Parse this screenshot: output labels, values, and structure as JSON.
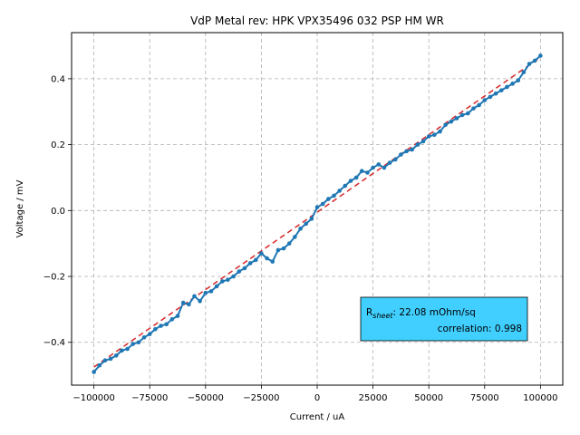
{
  "chart_data": {
    "type": "scatter",
    "title": "VdP Metal rev: HPK VPX35496 032 PSP HM WR",
    "xlabel": "Current / uA",
    "ylabel": "Voltage / mV",
    "xlim": [
      -110000,
      110000
    ],
    "ylim": [
      -0.53,
      0.54
    ],
    "grid": true,
    "xticks": [
      -100000,
      -75000,
      -50000,
      -25000,
      0,
      25000,
      50000,
      75000,
      100000
    ],
    "xtick_labels": [
      "−100000",
      "−75000",
      "−50000",
      "−25000",
      "0",
      "25000",
      "50000",
      "75000",
      "100000"
    ],
    "yticks": [
      -0.4,
      -0.2,
      0.0,
      0.2,
      0.4
    ],
    "ytick_labels": [
      "−0.4",
      "−0.2",
      "0.0",
      "0.2",
      "0.4"
    ],
    "colors": {
      "data": "#1f77b4",
      "fit": "#d62728",
      "annotation_bg": "#40cfff"
    },
    "series": [
      {
        "x": [
          -100000,
          -97500,
          -95000,
          -92500,
          -90000,
          -87500,
          -85000,
          -82500,
          -80000,
          -77500,
          -75000,
          -72500,
          -70000,
          -67500,
          -65000,
          -62500,
          -60000,
          -57500,
          -55000,
          -52500,
          -50000,
          -47500,
          -45000,
          -42500,
          -40000,
          -37500,
          -35000,
          -32500,
          -30000,
          -27500,
          -25000,
          -22500,
          -20000,
          -17500,
          -15000,
          -12500,
          -10000,
          -7500,
          -5000,
          -2500,
          0,
          2500,
          5000,
          7500,
          10000,
          12500,
          15000,
          17500,
          20000,
          22500,
          25000,
          27500,
          30000,
          32500,
          35000,
          37500,
          40000,
          42500,
          45000,
          47500,
          50000,
          52500,
          55000,
          57500,
          60000,
          62500,
          65000,
          67500,
          70000,
          72500,
          75000,
          77500,
          80000,
          82500,
          85000,
          87500,
          90000,
          92500,
          95000,
          97500,
          100000
        ],
        "y": [
          -0.49,
          -0.47,
          -0.455,
          -0.45,
          -0.44,
          -0.425,
          -0.42,
          -0.405,
          -0.4,
          -0.385,
          -0.375,
          -0.36,
          -0.35,
          -0.345,
          -0.33,
          -0.32,
          -0.28,
          -0.285,
          -0.26,
          -0.275,
          -0.25,
          -0.245,
          -0.23,
          -0.215,
          -0.21,
          -0.2,
          -0.185,
          -0.175,
          -0.16,
          -0.15,
          -0.13,
          -0.145,
          -0.155,
          -0.12,
          -0.115,
          -0.1,
          -0.08,
          -0.055,
          -0.04,
          -0.025,
          0.01,
          0.02,
          0.035,
          0.045,
          0.06,
          0.075,
          0.09,
          0.1,
          0.12,
          0.115,
          0.13,
          0.14,
          0.13,
          0.145,
          0.155,
          0.17,
          0.18,
          0.185,
          0.2,
          0.21,
          0.225,
          0.23,
          0.24,
          0.26,
          0.27,
          0.28,
          0.29,
          0.295,
          0.31,
          0.32,
          0.335,
          0.345,
          0.355,
          0.365,
          0.375,
          0.385,
          0.395,
          0.42,
          0.445,
          0.455,
          0.47
        ]
      }
    ],
    "fit": {
      "slope_per_uA": 4.7e-06,
      "intercept": -0.005,
      "x_range": [
        -100000,
        100000
      ]
    },
    "annotation": {
      "rsheet_main": "R",
      "rsheet_sub": "sheet",
      "rsheet_value": ":     22.08 mOhm/sq",
      "correlation": "correlation: 0.998"
    }
  }
}
